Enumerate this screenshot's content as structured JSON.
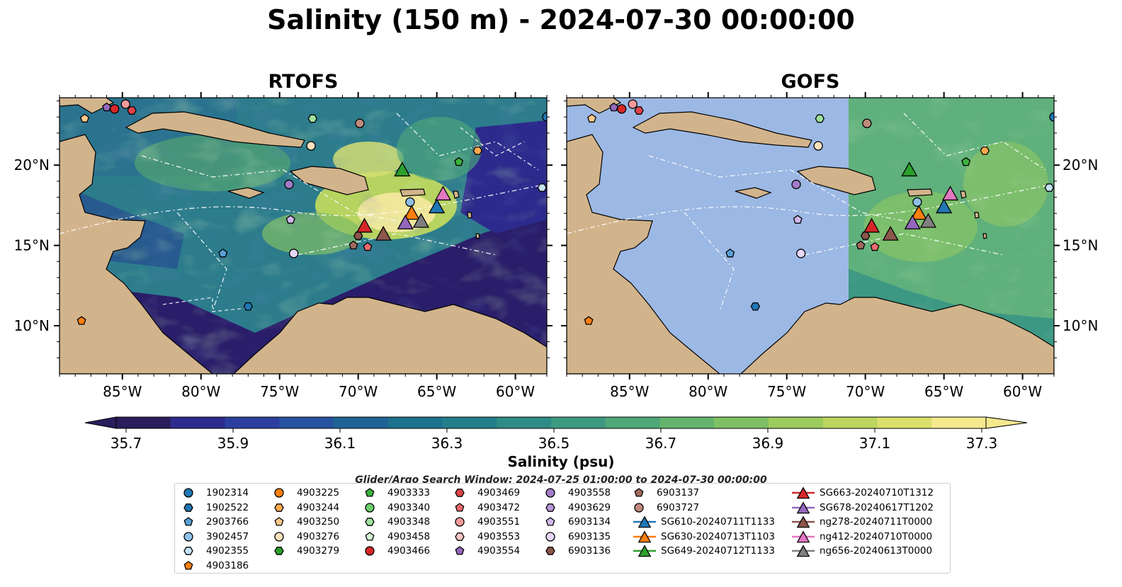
{
  "title": "Salinity (150 m) - 2024-07-30 00:00:00",
  "panels": [
    {
      "name": "RTOFS"
    },
    {
      "name": "GOFS"
    }
  ],
  "axes": {
    "lon_ticks": [
      "85°W",
      "80°W",
      "75°W",
      "70°W",
      "65°W",
      "60°W"
    ],
    "lat_ticks": [
      "20°N",
      "15°N",
      "10°N"
    ],
    "lon_range": [
      -89,
      -58
    ],
    "lat_range": [
      7,
      24.2
    ]
  },
  "colorbar": {
    "label": "Salinity (psu)",
    "ticks": [
      "35.7",
      "35.9",
      "36.1",
      "36.3",
      "36.5",
      "36.7",
      "36.9",
      "37.1",
      "37.3"
    ],
    "range": [
      35.7,
      37.3
    ],
    "colormap": [
      "#2a1d5c",
      "#2d2b8c",
      "#2c3fa0",
      "#2652a0",
      "#1f6396",
      "#1e728e",
      "#237f8a",
      "#2e8c86",
      "#3d9a80",
      "#50a778",
      "#65b46e",
      "#80c064",
      "#9ccb5e",
      "#bbd55e",
      "#dbe06c",
      "#f5e98e"
    ]
  },
  "search_window": "Glider/Argo Search Window: 2024-07-25 01:00:00 to 2024-07-30 00:00:00",
  "legend": {
    "items": [
      {
        "label": "1902314",
        "marker": "circle",
        "color": "#1f77b4"
      },
      {
        "label": "1902522",
        "marker": "hexagon",
        "color": "#1f77b4"
      },
      {
        "label": "2903766",
        "marker": "pentagon",
        "color": "#5a9fd4"
      },
      {
        "label": "3902457",
        "marker": "circle",
        "color": "#8fc0ea"
      },
      {
        "label": "4902355",
        "marker": "hexagon",
        "color": "#c6e2f6"
      },
      {
        "label": "4903186",
        "marker": "pentagon",
        "color": "#ff7f0e"
      },
      {
        "label": "4903225",
        "marker": "circle",
        "color": "#ff7f0e"
      },
      {
        "label": "4903244",
        "marker": "hexagon",
        "color": "#ffa94d"
      },
      {
        "label": "4903250",
        "marker": "pentagon",
        "color": "#ffc88a"
      },
      {
        "label": "4903276",
        "marker": "circle",
        "color": "#ffe2bd"
      },
      {
        "label": "4903279",
        "marker": "hexagon",
        "color": "#2ca02c"
      },
      {
        "label": "4903333",
        "marker": "pentagon",
        "color": "#3cb23c"
      },
      {
        "label": "4903340",
        "marker": "circle",
        "color": "#6ccf6c"
      },
      {
        "label": "4903348",
        "marker": "hexagon",
        "color": "#9ee19e"
      },
      {
        "label": "4903458",
        "marker": "pentagon",
        "color": "#d2f2d2"
      },
      {
        "label": "4903466",
        "marker": "circle",
        "color": "#d62728"
      },
      {
        "label": "4903469",
        "marker": "hexagon",
        "color": "#e04448"
      },
      {
        "label": "4903472",
        "marker": "pentagon",
        "color": "#ea6a6e"
      },
      {
        "label": "4903551",
        "marker": "circle",
        "color": "#f59a9b"
      },
      {
        "label": "4903553",
        "marker": "hexagon",
        "color": "#fbc7c6"
      },
      {
        "label": "4903554",
        "marker": "pentagon",
        "color": "#9467bd"
      },
      {
        "label": "4903558",
        "marker": "circle",
        "color": "#a27bc8"
      },
      {
        "label": "4903629",
        "marker": "hexagon",
        "color": "#b896d6"
      },
      {
        "label": "6903134",
        "marker": "pentagon",
        "color": "#d2b7ea"
      },
      {
        "label": "6903135",
        "marker": "circle",
        "color": "#e8d6f8"
      },
      {
        "label": "6903136",
        "marker": "hexagon",
        "color": "#8c564b"
      },
      {
        "label": "6903137",
        "marker": "pentagon",
        "color": "#a26a5e"
      },
      {
        "label": "6903727",
        "marker": "circle",
        "color": "#c08a7c"
      },
      {
        "label": "SG610-20240711T1133",
        "marker": "triangle-line",
        "color": "#1f77b4"
      },
      {
        "label": "SG630-20240713T1103",
        "marker": "triangle-line",
        "color": "#ff7f0e"
      },
      {
        "label": "SG649-20240712T1133",
        "marker": "triangle-line",
        "color": "#2ca02c"
      },
      {
        "label": "SG663-20240710T1312",
        "marker": "triangle-line",
        "color": "#d62728"
      },
      {
        "label": "SG678-20240617T1202",
        "marker": "triangle-line",
        "color": "#9467bd"
      },
      {
        "label": "ng278-20240711T0000",
        "marker": "triangle-line",
        "color": "#8c564b"
      },
      {
        "label": "ng412-20240710T0000",
        "marker": "triangle-line",
        "color": "#e377c2"
      },
      {
        "label": "ng656-20240613T0000",
        "marker": "triangle-line",
        "color": "#7f7f7f"
      }
    ]
  },
  "map_data": {
    "glider_positions": [
      {
        "id": "SG663-20240710T1312",
        "lon": -69.6,
        "lat": 16.2,
        "color": "#d62728"
      },
      {
        "id": "SG630-20240713T1103",
        "lon": -66.6,
        "lat": 17.0,
        "color": "#ff7f0e"
      },
      {
        "id": "SG610-20240711T1133",
        "lon": -65.0,
        "lat": 17.4,
        "color": "#1f77b4"
      },
      {
        "id": "SG649-20240712T1133",
        "lon": -67.2,
        "lat": 19.7,
        "color": "#2ca02c"
      },
      {
        "id": "SG678-20240617T1202",
        "lon": -67.0,
        "lat": 16.4,
        "color": "#9467bd"
      },
      {
        "id": "ng278-20240711T0000",
        "lon": -68.4,
        "lat": 15.7,
        "color": "#8c564b"
      },
      {
        "id": "ng412-20240710T0000",
        "lon": -64.6,
        "lat": 18.2,
        "color": "#e377c2"
      },
      {
        "id": "ng656-20240613T0000",
        "lon": -66.0,
        "lat": 16.5,
        "color": "#7f7f7f"
      }
    ],
    "argo_positions": [
      {
        "id": "4903466",
        "lon": -85.5,
        "lat": 23.5,
        "color": "#d62728"
      },
      {
        "id": "4903469",
        "lon": -84.4,
        "lat": 23.4,
        "color": "#e04448"
      },
      {
        "id": "4903554",
        "lon": -86.0,
        "lat": 23.6,
        "color": "#9467bd"
      },
      {
        "id": "4903551",
        "lon": -84.8,
        "lat": 23.8,
        "color": "#f59a9b"
      },
      {
        "id": "4903250",
        "lon": -87.4,
        "lat": 22.9,
        "color": "#ffc88a"
      },
      {
        "id": "4903348",
        "lon": -72.9,
        "lat": 22.9,
        "color": "#9ee19e"
      },
      {
        "id": "6903727",
        "lon": -69.9,
        "lat": 22.6,
        "color": "#c08a7c"
      },
      {
        "id": "4903276",
        "lon": -73.0,
        "lat": 21.2,
        "color": "#ffe2bd"
      },
      {
        "id": "4903244",
        "lon": -62.4,
        "lat": 20.9,
        "color": "#ffa94d"
      },
      {
        "id": "4903333",
        "lon": -63.6,
        "lat": 20.2,
        "color": "#3cb23c"
      },
      {
        "id": "4903558",
        "lon": -74.4,
        "lat": 18.8,
        "color": "#a27bc8"
      },
      {
        "id": "3902457",
        "lon": -66.7,
        "lat": 17.7,
        "color": "#8fc0ea"
      },
      {
        "id": "4902355",
        "lon": -58.3,
        "lat": 18.6,
        "color": "#c6e2f6"
      },
      {
        "id": "6903134",
        "lon": -74.3,
        "lat": 16.6,
        "color": "#d2b7ea"
      },
      {
        "id": "2903766",
        "lon": -78.6,
        "lat": 14.5,
        "color": "#5a9fd4"
      },
      {
        "id": "6903135",
        "lon": -74.1,
        "lat": 14.5,
        "color": "#e8d6f8"
      },
      {
        "id": "6903136",
        "lon": -70.0,
        "lat": 15.6,
        "color": "#8c564b"
      },
      {
        "id": "6903137",
        "lon": -70.3,
        "lat": 15.0,
        "color": "#a26a5e"
      },
      {
        "id": "4903472",
        "lon": -69.4,
        "lat": 14.9,
        "color": "#ea6a6e"
      },
      {
        "id": "1902522",
        "lon": -77.0,
        "lat": 11.2,
        "color": "#1f77b4"
      },
      {
        "id": "4903186",
        "lon": -87.6,
        "lat": 10.3,
        "color": "#ff7f0e"
      },
      {
        "id": "1902314",
        "lon": -58.0,
        "lat": 23.0,
        "color": "#1f77b4"
      }
    ],
    "land_color": "#d2b48c",
    "shallow_color": "#9cb8e4"
  }
}
